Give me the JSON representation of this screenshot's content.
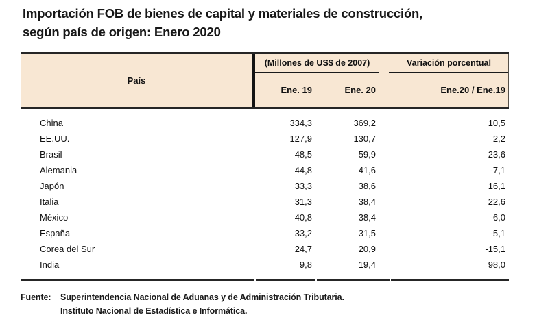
{
  "title": {
    "line1": "Importación FOB de bienes de capital y materiales de construcción,",
    "line2": "según país de origen: Enero 2020"
  },
  "table": {
    "col_pais": "País",
    "group_millones": "(Millones de US$ de 2007)",
    "group_variacion": "Variación porcentual",
    "sub_ene19": "Ene. 19",
    "sub_ene20": "Ene. 20",
    "sub_variacion": "Ene.20 / Ene.19",
    "rows": [
      {
        "pais": "China",
        "ene19": "334,3",
        "ene20": "369,2",
        "var": "10,5"
      },
      {
        "pais": "EE.UU.",
        "ene19": "127,9",
        "ene20": "130,7",
        "var": "2,2"
      },
      {
        "pais": "Brasil",
        "ene19": "48,5",
        "ene20": "59,9",
        "var": "23,6"
      },
      {
        "pais": "Alemania",
        "ene19": "44,8",
        "ene20": "41,6",
        "var": "-7,1"
      },
      {
        "pais": "Japón",
        "ene19": "33,3",
        "ene20": "38,6",
        "var": "16,1"
      },
      {
        "pais": "Italia",
        "ene19": "31,3",
        "ene20": "38,4",
        "var": "22,6"
      },
      {
        "pais": "México",
        "ene19": "40,8",
        "ene20": "38,4",
        "var": "-6,0"
      },
      {
        "pais": "España",
        "ene19": "33,2",
        "ene20": "31,5",
        "var": "-5,1"
      },
      {
        "pais": "Corea del Sur",
        "ene19": "24,7",
        "ene20": "20,9",
        "var": "-15,1"
      },
      {
        "pais": "India",
        "ene19": "9,8",
        "ene20": "19,4",
        "var": "98,0"
      }
    ]
  },
  "fuente": {
    "label": "Fuente:",
    "line1": "Superintendencia Nacional de Aduanas y de Administración Tributaria.",
    "line2": "Instituto Nacional de Estadística e Informática."
  },
  "colors": {
    "header_bg": "#f8e7d3",
    "rule": "#262626",
    "text": "#111111"
  },
  "chart_data": {
    "type": "table",
    "title": "Importación FOB de bienes de capital y materiales de construcción, según país de origen: Enero 2020",
    "unit": "Millones de US$ de 2007",
    "categories": [
      "China",
      "EE.UU.",
      "Brasil",
      "Alemania",
      "Japón",
      "Italia",
      "México",
      "España",
      "Corea del Sur",
      "India"
    ],
    "series": [
      {
        "name": "Ene. 19",
        "values": [
          334.3,
          127.9,
          48.5,
          44.8,
          33.3,
          31.3,
          40.8,
          33.2,
          24.7,
          9.8
        ]
      },
      {
        "name": "Ene. 20",
        "values": [
          369.2,
          130.7,
          59.9,
          41.6,
          38.6,
          38.4,
          38.4,
          31.5,
          20.9,
          19.4
        ]
      },
      {
        "name": "Variación porcentual Ene.20 / Ene.19",
        "values": [
          10.5,
          2.2,
          23.6,
          -7.1,
          16.1,
          22.6,
          -6.0,
          -5.1,
          -15.1,
          98.0
        ]
      }
    ]
  }
}
